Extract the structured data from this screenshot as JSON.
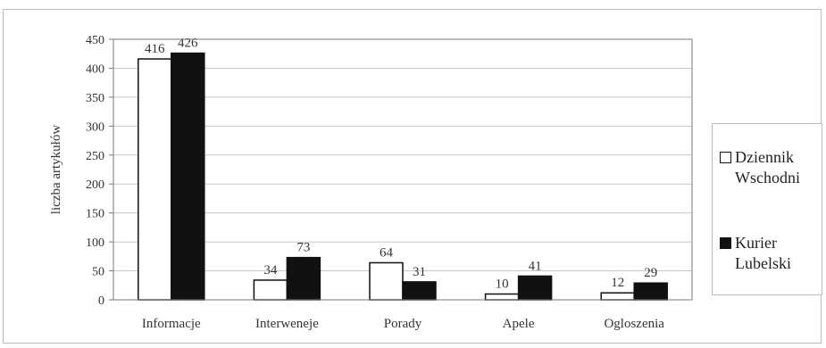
{
  "chart_data": {
    "type": "bar",
    "ylabel": "liczba artykułów",
    "ylim": [
      0,
      450
    ],
    "yticks": [
      0,
      50,
      100,
      150,
      200,
      250,
      300,
      350,
      400,
      450
    ],
    "grid": true,
    "legend_position": "right",
    "categories": [
      "Informacje",
      "Interweneje",
      "Porady",
      "Apele",
      "Ogloszenia"
    ],
    "series": [
      {
        "name": "Dziennik Wschodni",
        "color": "#ffffff",
        "values": [
          416,
          34,
          64,
          10,
          12
        ]
      },
      {
        "name": "Kurier Lubelski",
        "color": "#111111",
        "values": [
          426,
          73,
          31,
          41,
          29
        ]
      }
    ]
  }
}
